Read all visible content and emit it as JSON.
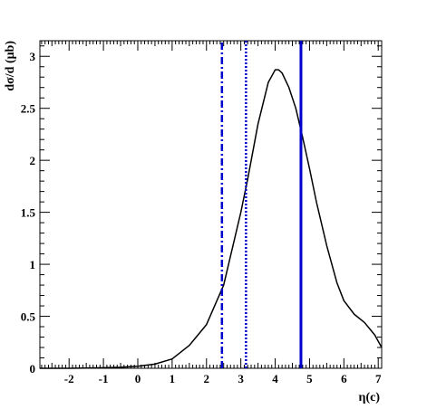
{
  "chart_data": {
    "type": "line",
    "title": "",
    "xlabel": "η(c)",
    "ylabel": "dσ/d (μb)",
    "xlim": [
      -2.85,
      7.1
    ],
    "ylim": [
      0,
      3.15
    ],
    "x_ticks": [
      -2,
      -1,
      0,
      1,
      2,
      3,
      4,
      5,
      6,
      7
    ],
    "y_ticks": [
      0,
      0.5,
      1,
      1.5,
      2,
      2.5,
      3
    ],
    "y_tick_labels": [
      "0",
      "0.5",
      "1",
      "1.5",
      "2",
      "2.5",
      "3"
    ],
    "grid": false,
    "legend": "none",
    "series": [
      {
        "style": "solid",
        "color": "#000000",
        "x": [
          -2.85,
          -2,
          -1.5,
          -1,
          -0.5,
          0,
          0.5,
          1,
          1.5,
          2,
          2.5,
          3,
          3.2,
          3.5,
          3.8,
          4.0,
          4.1,
          4.2,
          4.4,
          4.6,
          4.8,
          5.0,
          5.2,
          5.5,
          5.8,
          6.0,
          6.3,
          6.6,
          6.9,
          7.1
        ],
        "y": [
          0,
          0,
          0.002,
          0.005,
          0.01,
          0.02,
          0.04,
          0.09,
          0.22,
          0.42,
          0.8,
          1.5,
          1.82,
          2.35,
          2.75,
          2.87,
          2.87,
          2.84,
          2.7,
          2.5,
          2.22,
          1.92,
          1.6,
          1.18,
          0.82,
          0.65,
          0.52,
          0.44,
          0.32,
          0.2
        ]
      }
    ],
    "vertical_lines": [
      {
        "x": 2.45,
        "style": "dashdot",
        "color": "#0000cc"
      },
      {
        "x": 3.15,
        "style": "dotted",
        "color": "#0000cc"
      },
      {
        "x": 4.75,
        "style": "solid",
        "color": "#0000cc"
      }
    ]
  }
}
